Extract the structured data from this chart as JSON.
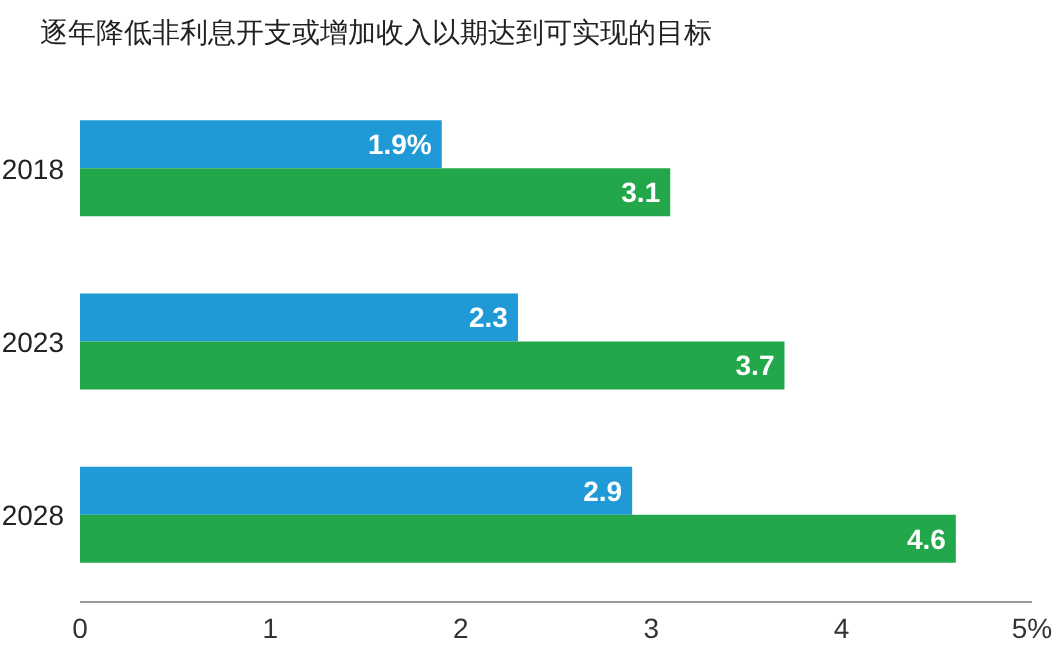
{
  "chart_data": {
    "type": "bar",
    "orientation": "horizontal",
    "title": "逐年降低非利息开支或增加收入以期达到可实现的目标",
    "categories": [
      "2018",
      "2023",
      "2028"
    ],
    "series": [
      {
        "color": "#1f9ad6",
        "values": [
          1.9,
          2.3,
          2.9
        ],
        "value_labels": [
          "1.9%",
          "2.3",
          "2.9"
        ]
      },
      {
        "color": "#22a84a",
        "values": [
          3.1,
          3.7,
          4.6
        ],
        "value_labels": [
          "3.1",
          "3.7",
          "4.6"
        ]
      }
    ],
    "xlim": [
      0,
      5
    ],
    "xticks": [
      0,
      1,
      2,
      3,
      4,
      {
        "value": 5,
        "label": "5%"
      }
    ],
    "grid": false,
    "legend": false
  }
}
